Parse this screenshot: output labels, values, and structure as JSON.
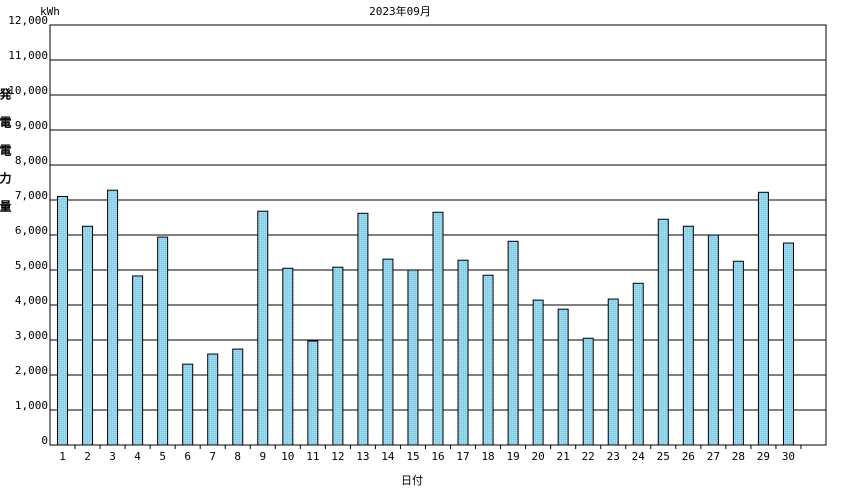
{
  "chart_data": {
    "type": "bar",
    "title": "2023年09月",
    "unit": "kWh",
    "y_label": "発電電力量",
    "x_label": "日付",
    "categories": [
      "1",
      "2",
      "3",
      "4",
      "5",
      "6",
      "7",
      "8",
      "9",
      "10",
      "11",
      "12",
      "13",
      "14",
      "15",
      "16",
      "17",
      "18",
      "19",
      "20",
      "21",
      "22",
      "23",
      "24",
      "25",
      "26",
      "27",
      "28",
      "29",
      "30"
    ],
    "values": [
      7100,
      6250,
      7280,
      4830,
      5940,
      2310,
      2600,
      2740,
      6680,
      5050,
      2970,
      5080,
      6620,
      5310,
      5000,
      6650,
      5280,
      4850,
      5820,
      4140,
      3880,
      3050,
      4170,
      4620,
      6450,
      6250,
      6000,
      5250,
      7220,
      5770
    ],
    "color": "#87cfe8",
    "ylim": [
      0,
      12000
    ],
    "yticks": [
      0,
      {
        "value": 1000,
        "label": "1,000"
      },
      {
        "value": 2000,
        "label": "2,000"
      },
      {
        "value": 3000,
        "label": "3,000"
      },
      {
        "value": 4000,
        "label": "4,000"
      },
      {
        "value": 5000,
        "label": "5,000"
      },
      {
        "value": 6000,
        "label": "6,000"
      },
      {
        "value": 7000,
        "label": "7,000"
      },
      {
        "value": 8000,
        "label": "8,000"
      },
      {
        "value": 9000,
        "label": "9,000"
      },
      {
        "value": 10000,
        "label": "10,000"
      },
      {
        "value": 11000,
        "label": "11,000"
      },
      {
        "value": 12000,
        "label": "12,000"
      }
    ],
    "grid": true
  }
}
